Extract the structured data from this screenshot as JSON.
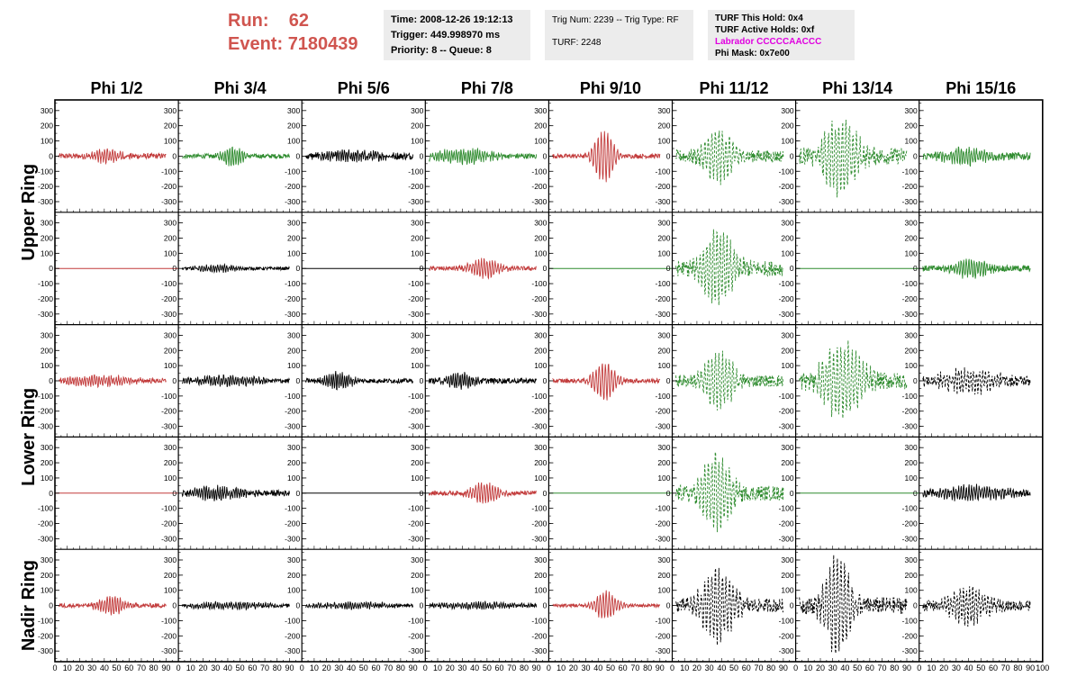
{
  "header": {
    "run_label": "Run:",
    "run_value": "62",
    "event_label": "Event:",
    "event_value": "7180439"
  },
  "info_time": {
    "time": "Time: 2008-12-26 19:12:13",
    "trigger": "Trigger: 449.998970 ms",
    "priority": "Priority: 8 -- Queue: 8"
  },
  "info_trig": {
    "trig": "Trig Num: 2239 -- Trig Type: RF",
    "turf": "TURF: 2248"
  },
  "info_turf": {
    "hold": "TURF This Hold: 0x4",
    "active": "TURF Active Holds: 0xf",
    "labrador": "Labrador CCCCCAACCC",
    "phimask": "Phi Mask: 0x7e00"
  },
  "colors": {
    "red": "#c23b3b",
    "green": "#2e8b2e",
    "black": "#000000",
    "header_red": "#d0554f",
    "magenta": "#e000e0"
  },
  "chart_data": {
    "type": "line",
    "columns": [
      "Phi 1/2",
      "Phi 3/4",
      "Phi 5/6",
      "Phi 7/8",
      "Phi 9/10",
      "Phi 11/12",
      "Phi 13/14",
      "Phi 15/16"
    ],
    "ring_labels": [
      {
        "name": "Upper Ring",
        "rows": [
          0,
          1
        ]
      },
      {
        "name": "Lower Ring",
        "rows": [
          2,
          3
        ]
      },
      {
        "name": "Nadir Ring",
        "rows": [
          4
        ]
      }
    ],
    "xlim": [
      0,
      100
    ],
    "x_ticks": [
      "0",
      "10",
      "20",
      "30",
      "40",
      "50",
      "60",
      "70",
      "80",
      "90",
      "100"
    ],
    "ylim": [
      -370,
      370
    ],
    "y_ticks": [
      300,
      200,
      100,
      0,
      -100,
      -200,
      -300
    ],
    "grid": false,
    "waveforms": [
      [
        {
          "color": "red",
          "style": "solid",
          "amp": 40,
          "center": 42,
          "width": 14,
          "noise": 18,
          "freq": 3.0
        },
        {
          "color": "green",
          "style": "solid",
          "amp": 60,
          "center": 44,
          "width": 10,
          "noise": 15,
          "freq": 3.2
        },
        {
          "color": "black",
          "style": "solid",
          "amp": 25,
          "center": 40,
          "width": 30,
          "noise": 22,
          "freq": 3.5
        },
        {
          "color": "green",
          "style": "solid",
          "amp": 45,
          "center": 30,
          "width": 25,
          "noise": 18,
          "freq": 3.3
        },
        {
          "color": "red",
          "style": "solid",
          "amp": 170,
          "center": 45,
          "width": 9,
          "noise": 15,
          "freq": 2.4
        },
        {
          "color": "green",
          "style": "dashed",
          "amp": 160,
          "center": 38,
          "width": 14,
          "noise": 40,
          "freq": 2.2
        },
        {
          "color": "green",
          "style": "dashed",
          "amp": 230,
          "center": 36,
          "width": 16,
          "noise": 55,
          "freq": 2.2
        },
        {
          "color": "green",
          "style": "solid",
          "amp": 50,
          "center": 40,
          "width": 20,
          "noise": 25,
          "freq": 3.0
        }
      ],
      [
        {
          "color": "red",
          "style": "flat",
          "amp": 0,
          "center": 50,
          "width": 10,
          "noise": 0,
          "freq": 1
        },
        {
          "color": "black",
          "style": "solid",
          "amp": 22,
          "center": 32,
          "width": 20,
          "noise": 10,
          "freq": 3.4
        },
        {
          "color": "black",
          "style": "flat",
          "amp": 0,
          "center": 50,
          "width": 10,
          "noise": 0,
          "freq": 1
        },
        {
          "color": "red",
          "style": "solid",
          "amp": 60,
          "center": 48,
          "width": 14,
          "noise": 15,
          "freq": 2.8
        },
        {
          "color": "green",
          "style": "flat",
          "amp": 0,
          "center": 50,
          "width": 10,
          "noise": 0,
          "freq": 1
        },
        {
          "color": "green",
          "style": "dashed",
          "amp": 230,
          "center": 37,
          "width": 15,
          "noise": 50,
          "freq": 2.3
        },
        {
          "color": "green",
          "style": "flat",
          "amp": 0,
          "center": 50,
          "width": 10,
          "noise": 0,
          "freq": 1
        },
        {
          "color": "green",
          "style": "solid",
          "amp": 60,
          "center": 42,
          "width": 15,
          "noise": 20,
          "freq": 3.0
        }
      ],
      [
        {
          "color": "red",
          "style": "solid",
          "amp": 35,
          "center": 35,
          "width": 30,
          "noise": 15,
          "freq": 3.2
        },
        {
          "color": "black",
          "style": "solid",
          "amp": 30,
          "center": 40,
          "width": 30,
          "noise": 15,
          "freq": 3.3
        },
        {
          "color": "black",
          "style": "solid",
          "amp": 55,
          "center": 30,
          "width": 12,
          "noise": 15,
          "freq": 3.5
        },
        {
          "color": "black",
          "style": "solid",
          "amp": 50,
          "center": 28,
          "width": 12,
          "noise": 18,
          "freq": 3.4
        },
        {
          "color": "red",
          "style": "solid",
          "amp": 120,
          "center": 45,
          "width": 10,
          "noise": 15,
          "freq": 2.5
        },
        {
          "color": "green",
          "style": "dashed",
          "amp": 170,
          "center": 38,
          "width": 14,
          "noise": 40,
          "freq": 2.2
        },
        {
          "color": "green",
          "style": "dashed",
          "amp": 240,
          "center": 38,
          "width": 18,
          "noise": 55,
          "freq": 2.1
        },
        {
          "color": "black",
          "style": "dashed",
          "amp": 70,
          "center": 40,
          "width": 25,
          "noise": 35,
          "freq": 2.6
        }
      ],
      [
        {
          "color": "red",
          "style": "flat",
          "amp": 0,
          "center": 50,
          "width": 10,
          "noise": 0,
          "freq": 1
        },
        {
          "color": "black",
          "style": "solid",
          "amp": 40,
          "center": 32,
          "width": 22,
          "noise": 20,
          "freq": 3.4
        },
        {
          "color": "black",
          "style": "flat",
          "amp": 0,
          "center": 50,
          "width": 10,
          "noise": 0,
          "freq": 1
        },
        {
          "color": "red",
          "style": "solid",
          "amp": 65,
          "center": 48,
          "width": 12,
          "noise": 15,
          "freq": 2.8
        },
        {
          "color": "green",
          "style": "flat",
          "amp": 0,
          "center": 50,
          "width": 10,
          "noise": 0,
          "freq": 1
        },
        {
          "color": "green",
          "style": "dashed",
          "amp": 240,
          "center": 36,
          "width": 14,
          "noise": 50,
          "freq": 2.2
        },
        {
          "color": "green",
          "style": "flat",
          "amp": 0,
          "center": 50,
          "width": 10,
          "noise": 0,
          "freq": 1
        },
        {
          "color": "black",
          "style": "solid",
          "amp": 45,
          "center": 45,
          "width": 30,
          "noise": 20,
          "freq": 3.0
        }
      ],
      [
        {
          "color": "red",
          "style": "solid",
          "amp": 60,
          "center": 46,
          "width": 12,
          "noise": 15,
          "freq": 3.0
        },
        {
          "color": "black",
          "style": "solid",
          "amp": 20,
          "center": 40,
          "width": 35,
          "noise": 12,
          "freq": 3.4
        },
        {
          "color": "black",
          "style": "solid",
          "amp": 18,
          "center": 40,
          "width": 35,
          "noise": 12,
          "freq": 3.4
        },
        {
          "color": "black",
          "style": "solid",
          "amp": 20,
          "center": 40,
          "width": 35,
          "noise": 12,
          "freq": 3.4
        },
        {
          "color": "red",
          "style": "solid",
          "amp": 90,
          "center": 46,
          "width": 10,
          "noise": 12,
          "freq": 2.6
        },
        {
          "color": "black",
          "style": "dashed",
          "amp": 220,
          "center": 37,
          "width": 15,
          "noise": 45,
          "freq": 2.2
        },
        {
          "color": "black",
          "style": "dashed",
          "amp": 320,
          "center": 34,
          "width": 12,
          "noise": 55,
          "freq": 2.1
        },
        {
          "color": "black",
          "style": "dashed",
          "amp": 110,
          "center": 40,
          "width": 18,
          "noise": 35,
          "freq": 2.5
        }
      ]
    ]
  }
}
